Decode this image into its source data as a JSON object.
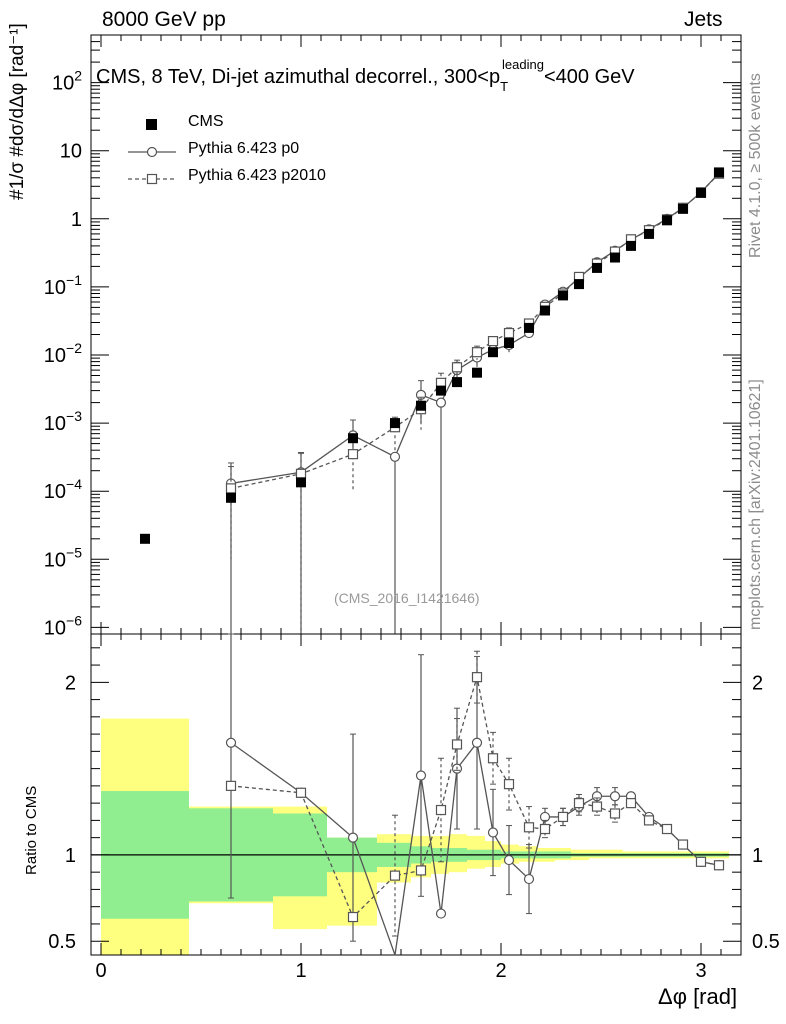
{
  "header": {
    "left": "8000 GeV pp",
    "right": "Jets"
  },
  "side_text": {
    "rivet": "Rivet 4.1.0, ≥ 500k events",
    "mcplots": "mcplots.cern.ch [arXiv:2401.10621]"
  },
  "plot_title": {
    "main": "CMS, 8 TeV, Di-jet azimuthal decorrel., 300<p",
    "sup": "leading",
    "sub": "T",
    "tail": "<400 GeV"
  },
  "analysis_id": "(CMS_2016_I1421646)",
  "ylabel_top": "#1/σ #dσ/dΔφ [rad⁻¹]",
  "ylabel_bottom": "Ratio to CMS",
  "xlabel": "Δφ [rad]",
  "legend": [
    {
      "label": "CMS",
      "marker": "filled-square"
    },
    {
      "label": "Pythia 6.423 p0",
      "marker": "open-circle",
      "line": "solid"
    },
    {
      "label": "Pythia 6.423 p2010",
      "marker": "open-square",
      "line": "dashed"
    }
  ],
  "colors": {
    "data": "#000000",
    "mc": "#555555",
    "band_inner": "#90ee90",
    "band_outer": "#ffff7f"
  },
  "chart_data": [
    {
      "type": "scatter",
      "xlim": [
        -0.05,
        3.2
      ],
      "ylim": [
        8e-07,
        500
      ],
      "yscale": "log",
      "ytick_labels": [
        "10^-6",
        "10^-5",
        "10^-4",
        "10^-3",
        "10^-2",
        "10^-1",
        "1",
        "10",
        "10^2"
      ],
      "xtick_labels": [
        "0",
        "1",
        "2",
        "3"
      ],
      "series": [
        {
          "name": "CMS",
          "x": [
            0.22,
            0.65,
            1.0,
            1.26,
            1.47,
            1.6,
            1.7,
            1.78,
            1.88,
            1.96,
            2.04,
            2.14,
            2.22,
            2.31,
            2.39,
            2.48,
            2.57,
            2.65,
            2.74,
            2.83,
            2.91,
            3.0,
            3.09
          ],
          "y": [
            2e-05,
            8e-05,
            0.000135,
            0.0006,
            0.001,
            0.0018,
            0.003,
            0.004,
            0.0055,
            0.011,
            0.015,
            0.025,
            0.045,
            0.075,
            0.11,
            0.19,
            0.27,
            0.4,
            0.6,
            0.95,
            1.4,
            2.4,
            4.8
          ]
        },
        {
          "name": "Pythia 6.423 p0",
          "x": [
            0.65,
            1.0,
            1.26,
            1.47,
            1.6,
            1.7,
            1.78,
            1.88,
            1.96,
            2.04,
            2.14,
            2.22,
            2.31,
            2.39,
            2.48,
            2.57,
            2.65,
            2.74,
            2.83,
            2.91,
            3.0,
            3.09
          ],
          "y": [
            0.00013,
            0.00019,
            0.00066,
            0.00032,
            0.0026,
            0.002,
            0.006,
            0.0092,
            0.012,
            0.014,
            0.021,
            0.055,
            0.085,
            0.135,
            0.23,
            0.34,
            0.49,
            0.7,
            1.0,
            1.45,
            2.45,
            4.7
          ],
          "yerr_hi": [
            0.00013,
            0.00018,
            0.00045,
            0,
            0.0016,
            0,
            0.0018,
            0.0025,
            0.002,
            0.003,
            0.003,
            0,
            0,
            0,
            0,
            0,
            0,
            0,
            0,
            0,
            0,
            0
          ],
          "yerr_lo": [
            0.00013,
            0.00019,
            0.00035,
            0.00032,
            0.0016,
            0.002,
            0.0018,
            0.0025,
            0.002,
            0.003,
            0.003,
            0,
            0,
            0,
            0,
            0,
            0,
            0,
            0,
            0,
            0,
            0
          ]
        },
        {
          "name": "Pythia 6.423 p2010",
          "x": [
            0.65,
            1.0,
            1.26,
            1.47,
            1.6,
            1.7,
            1.78,
            1.88,
            1.96,
            2.04,
            2.14,
            2.22,
            2.31,
            2.39,
            2.48,
            2.57,
            2.65,
            2.74,
            2.83,
            2.91,
            3.0,
            3.09
          ],
          "y": [
            0.00011,
            0.00018,
            0.00035,
            0.00087,
            0.0016,
            0.0039,
            0.0066,
            0.011,
            0.016,
            0.021,
            0.029,
            0.051,
            0.08,
            0.14,
            0.22,
            0.33,
            0.5,
            0.68,
            0.98,
            1.45,
            2.45,
            4.6
          ],
          "yerr_hi": [
            0.00012,
            0.00018,
            0.00025,
            0.00035,
            0.0008,
            0.0015,
            0.0018,
            0.0025,
            0.0025,
            0.004,
            0.004,
            0,
            0,
            0,
            0,
            0,
            0,
            0,
            0,
            0,
            0,
            0
          ],
          "yerr_lo": [
            0.0001,
            0.00018,
            0.00025,
            0.0005,
            0.0008,
            0.0015,
            0.0018,
            0.0025,
            0.0025,
            0.004,
            0.004,
            0,
            0,
            0,
            0,
            0,
            0,
            0,
            0,
            0,
            0,
            0
          ]
        }
      ]
    },
    {
      "type": "line",
      "xlim": [
        -0.05,
        3.2
      ],
      "ylim": [
        0.42,
        2.28
      ],
      "ytick_labels": [
        "0.5",
        "1",
        "2"
      ],
      "reference_line": 1,
      "bands": [
        {
          "x_edges": [
            0,
            0.44,
            0.86,
            1.13,
            1.38,
            1.55,
            1.65,
            1.74,
            1.83,
            1.92,
            2.0,
            2.09,
            2.18,
            2.27,
            2.35,
            2.44,
            2.53,
            2.61,
            2.7,
            2.79,
            2.87,
            2.96,
            3.05,
            3.14
          ],
          "inner_lo": [
            0.63,
            0.73,
            0.76,
            0.9,
            0.93,
            0.95,
            0.96,
            0.96,
            0.97,
            0.97,
            0.98,
            0.98,
            0.98,
            0.98,
            0.99,
            0.99,
            0.99,
            0.99,
            0.99,
            0.99,
            0.99,
            0.99,
            0.99
          ],
          "inner_hi": [
            1.37,
            1.27,
            1.24,
            1.1,
            1.07,
            1.05,
            1.04,
            1.04,
            1.03,
            1.03,
            1.02,
            1.02,
            1.02,
            1.02,
            1.01,
            1.01,
            1.01,
            1.01,
            1.01,
            1.01,
            1.01,
            1.01,
            1.01
          ],
          "outer_lo": [
            0.42,
            0.72,
            0.57,
            0.59,
            0.84,
            0.87,
            0.89,
            0.9,
            0.92,
            0.93,
            0.95,
            0.96,
            0.96,
            0.97,
            0.97,
            0.98,
            0.98,
            0.98,
            0.98,
            0.98,
            0.98,
            0.98,
            0.98
          ],
          "outer_hi": [
            1.79,
            1.28,
            1.28,
            1.1,
            1.12,
            1.11,
            1.11,
            1.12,
            1.11,
            1.08,
            1.06,
            1.05,
            1.04,
            1.04,
            1.03,
            1.03,
            1.03,
            1.02,
            1.02,
            1.02,
            1.02,
            1.02,
            1.02
          ]
        }
      ],
      "series": [
        {
          "name": "Pythia 6.423 p0",
          "x": [
            0.65,
            1.0,
            1.26,
            1.47,
            1.6,
            1.7,
            1.78,
            1.88,
            1.96,
            2.04,
            2.14,
            2.22,
            2.31,
            2.39,
            2.48,
            2.57,
            2.65,
            2.74,
            2.83,
            2.91,
            3.0,
            3.09
          ],
          "y": [
            1.65,
            1.36,
            1.1,
            0.32,
            1.46,
            0.66,
            1.5,
            1.65,
            1.13,
            0.97,
            0.86,
            1.22,
            1.22,
            1.28,
            1.34,
            1.34,
            1.34,
            1.22,
            1.15,
            1.06,
            0.96,
            0.94
          ],
          "yerr": [
            0.9,
            0,
            0.6,
            0,
            0.7,
            0,
            0.35,
            0.5,
            0.25,
            0.2,
            0.2,
            0.05,
            0.05,
            0.05,
            0.05,
            0.05,
            0,
            0,
            0,
            0,
            0,
            0
          ]
        },
        {
          "name": "Pythia 6.423 p2010",
          "x": [
            0.65,
            1.0,
            1.26,
            1.47,
            1.6,
            1.7,
            1.78,
            1.88,
            1.96,
            2.04,
            2.14,
            2.22,
            2.31,
            2.39,
            2.48,
            2.57,
            2.65,
            2.74,
            2.83,
            2.91,
            3.0,
            3.09
          ],
          "y": [
            1.4,
            1.36,
            0.64,
            0.88,
            0.91,
            1.26,
            1.64,
            2.03,
            1.56,
            1.41,
            1.16,
            1.15,
            1.22,
            1.3,
            1.28,
            1.24,
            1.3,
            1.2,
            1.15,
            1.06,
            0.96,
            0.94
          ],
          "yerr": [
            0,
            0,
            0,
            0.35,
            0,
            0.3,
            0.15,
            0.15,
            0.15,
            0.15,
            0.12,
            0.05,
            0.05,
            0.05,
            0.05,
            0.05,
            0,
            0,
            0,
            0,
            0,
            0
          ]
        }
      ]
    }
  ]
}
